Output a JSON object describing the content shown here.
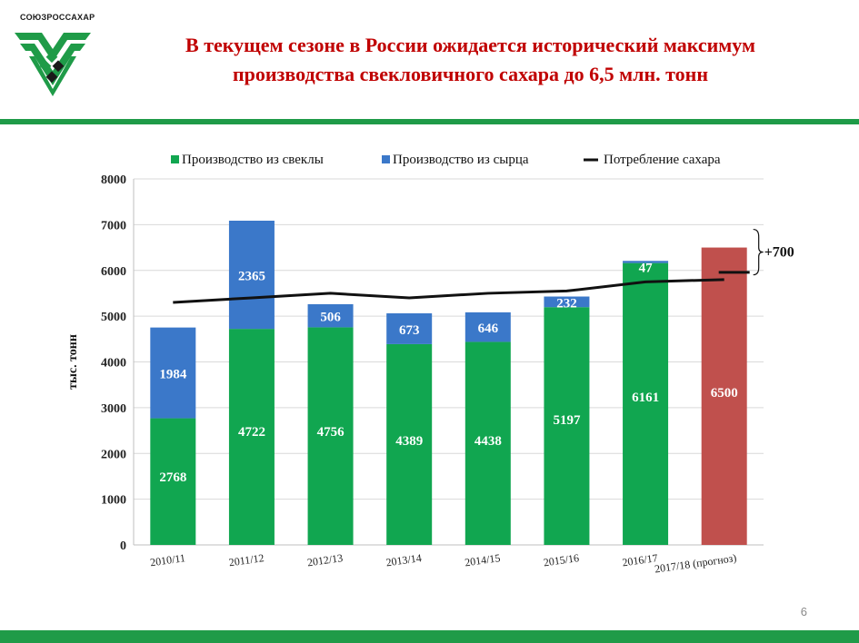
{
  "logo": {
    "text": "СОЮЗРОССАХАР",
    "icon": "sugar-union-emblem-icon"
  },
  "title_lines": [
    "В текущем сезоне в России ожидается исторический максимум",
    "производства свекловичного сахара до 6,5 млн. тонн"
  ],
  "page_number": "6",
  "colors": {
    "title": "#c00000",
    "accent_green": "#1f9b48",
    "beet": "#11a650",
    "raw": "#3b78c9",
    "forecast": "#c0504d",
    "line": "#111111"
  },
  "chart_data": {
    "type": "bar",
    "stacked": true,
    "categories": [
      "2010/11",
      "2011/12",
      "2012/13",
      "2013/14",
      "2014/15",
      "2015/16",
      "2016/17",
      "2017/18 (прогноз)"
    ],
    "series": [
      {
        "name": "Производство из свеклы",
        "values": [
          2768,
          4722,
          4756,
          4389,
          4438,
          5197,
          6161,
          6500
        ],
        "color": "#11a650"
      },
      {
        "name": "Производство из сырца",
        "values": [
          1984,
          2365,
          506,
          673,
          646,
          232,
          47,
          0
        ],
        "color": "#3b78c9"
      }
    ],
    "line_series": {
      "name": "Потребление сахара",
      "values": [
        5300,
        5400,
        5500,
        5400,
        5500,
        5550,
        5750,
        5800
      ],
      "color": "#111111"
    },
    "forecast_category": "2017/18 (прогноз)",
    "forecast_color": "#c0504d",
    "ylabel": "тыс. тонн",
    "ylim": [
      0,
      8000
    ],
    "yticks": [
      0,
      1000,
      2000,
      3000,
      4000,
      5000,
      6000,
      7000,
      8000
    ],
    "grid": true,
    "legend_position": "top",
    "annotation": "+700"
  }
}
